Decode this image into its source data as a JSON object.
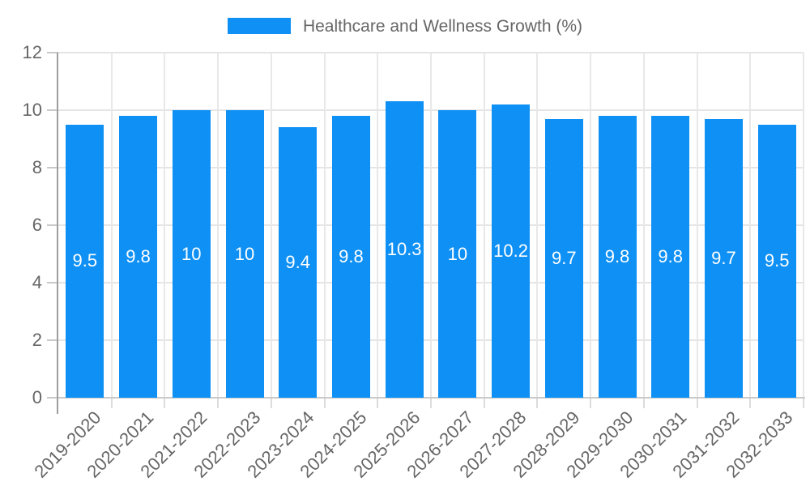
{
  "legend": {
    "label": "Healthcare and Wellness Growth (%)"
  },
  "chart_data": {
    "type": "bar",
    "title": "Healthcare and Wellness Growth (%)",
    "categories": [
      "2019-2020",
      "2020-2021",
      "2021-2022",
      "2022-2023",
      "2023-2024",
      "2024-2025",
      "2025-2026",
      "2026-2027",
      "2027-2028",
      "2028-2029",
      "2029-2030",
      "2030-2031",
      "2031-2032",
      "2032-2033"
    ],
    "values": [
      9.5,
      9.8,
      10,
      10,
      9.4,
      9.8,
      10.3,
      10,
      10.2,
      9.7,
      9.8,
      9.8,
      9.7,
      9.5
    ],
    "value_labels": [
      "9.5",
      "9.8",
      "10",
      "10",
      "9.4",
      "9.8",
      "10.3",
      "10",
      "10.2",
      "9.7",
      "9.8",
      "9.8",
      "9.7",
      "9.5"
    ],
    "xlabel": "",
    "ylabel": "",
    "ylim": [
      0,
      12
    ],
    "yticks": [
      0,
      2,
      4,
      6,
      8,
      10,
      12
    ],
    "grid": true,
    "legend_position": "top",
    "colors": {
      "bar": "#0e90f5",
      "value_label": "#ffffff",
      "tick_label": "#666666",
      "legend_label": "#666666",
      "gridline": "#e5e5e5",
      "y_axis": "#9e9e9e",
      "x_axis": "#c9c9c9"
    }
  }
}
